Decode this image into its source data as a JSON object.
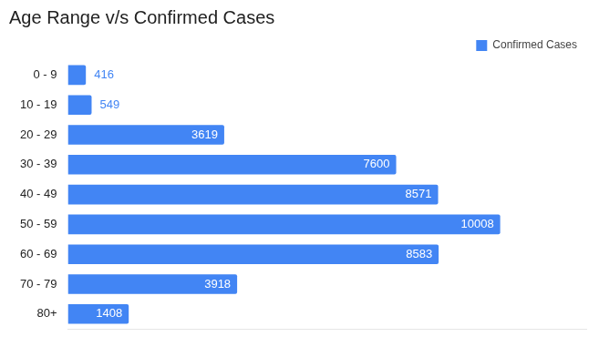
{
  "chart_data": {
    "type": "bar",
    "title": "Age Range v/s Confirmed Cases",
    "orientation": "horizontal",
    "categories": [
      "0 - 9",
      "10 - 19",
      "20 - 29",
      "30 - 39",
      "40 - 49",
      "50 - 59",
      "60 - 69",
      "70 - 79",
      "80+"
    ],
    "series": [
      {
        "name": "Confirmed Cases",
        "color": "#4285f4",
        "values": [
          416,
          549,
          3619,
          7600,
          8571,
          10008,
          8583,
          3918,
          1408
        ]
      }
    ],
    "xlim": [
      0,
      12000
    ],
    "grid": false,
    "legend": "top-right",
    "data_labels": true,
    "tick_labels": "y"
  }
}
